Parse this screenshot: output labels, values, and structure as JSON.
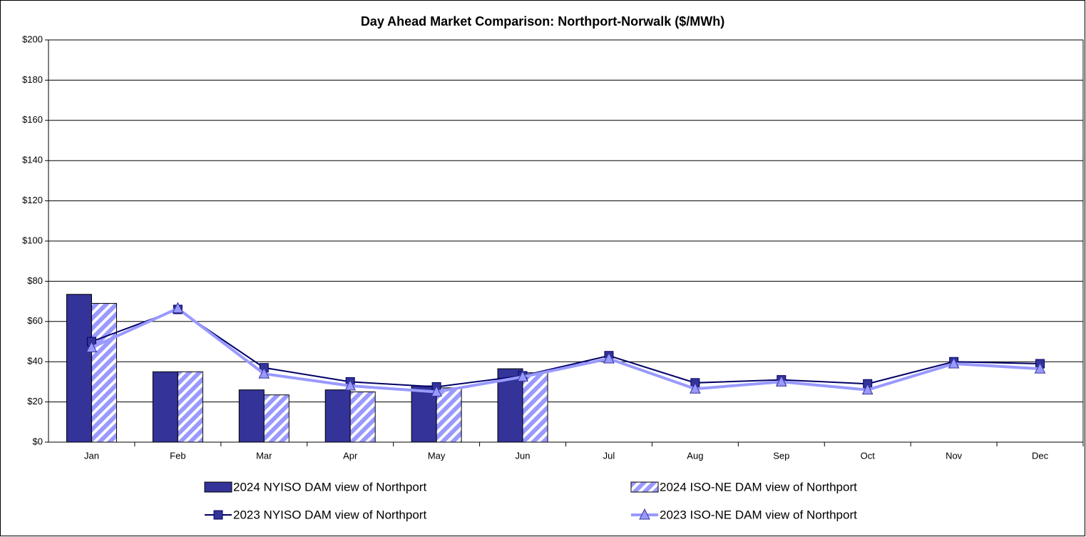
{
  "chart_data": {
    "type": "combo",
    "title": "Day Ahead Market Comparison: Northport-Norwalk ($/MWh)",
    "categories": [
      "Jan",
      "Feb",
      "Mar",
      "Apr",
      "May",
      "Jun",
      "Jul",
      "Aug",
      "Sep",
      "Oct",
      "Nov",
      "Dec"
    ],
    "series": [
      {
        "name": "2024 NYISO DAM view of Northport",
        "type": "bar",
        "color": "#333399",
        "values": [
          73.5,
          35,
          26,
          26,
          28,
          36.5,
          null,
          null,
          null,
          null,
          null,
          null
        ]
      },
      {
        "name": "2024 ISO-NE DAM view of Northport",
        "type": "bar",
        "color": "#9999ff",
        "values": [
          69,
          35,
          23.5,
          25,
          27,
          34.5,
          null,
          null,
          null,
          null,
          null,
          null
        ]
      },
      {
        "name": "2023 NYISO DAM view of Northport",
        "type": "line",
        "color": "#000066",
        "values": [
          50,
          66,
          37,
          30,
          27.5,
          33,
          43,
          29.5,
          31,
          29,
          40,
          39
        ]
      },
      {
        "name": "2023 ISO-NE DAM view of Northport",
        "type": "line",
        "color": "#9999ff",
        "values": [
          47,
          66.5,
          34,
          28,
          25,
          32.5,
          41.5,
          26.5,
          30,
          26,
          39,
          36.5
        ]
      }
    ],
    "ylim": [
      0,
      200
    ],
    "yticks": [
      {
        "value": 0,
        "label": "$0"
      },
      {
        "value": 20,
        "label": "$20"
      },
      {
        "value": 40,
        "label": "$40"
      },
      {
        "value": 60,
        "label": "$60"
      },
      {
        "value": 80,
        "label": "$80"
      },
      {
        "value": 100,
        "label": "$100"
      },
      {
        "value": 120,
        "label": "$120"
      },
      {
        "value": 140,
        "label": "$140"
      },
      {
        "value": 160,
        "label": "$160"
      },
      {
        "value": 180,
        "label": "$180"
      },
      {
        "value": 200,
        "label": "$200"
      }
    ],
    "grid": true,
    "legend": "bottom"
  }
}
